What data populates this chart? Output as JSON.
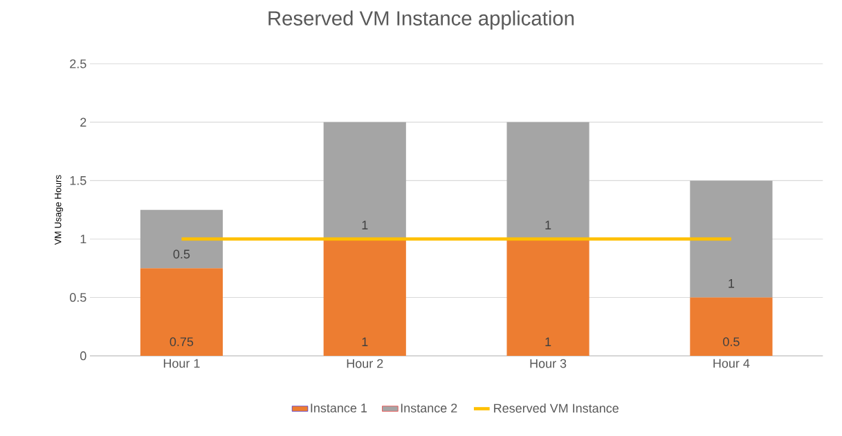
{
  "chart_data": {
    "type": "bar",
    "title": "Reserved VM Instance application",
    "ylabel": "VM Usage Hours",
    "categories": [
      "Hour 1",
      "Hour 2",
      "Hour 3",
      "Hour 4"
    ],
    "series": [
      {
        "name": "Instance 1",
        "color": "#ed7d31",
        "values": [
          0.75,
          1,
          1,
          0.5
        ],
        "value_labels": [
          "0.75",
          "1",
          "1",
          "0.5"
        ]
      },
      {
        "name": "Instance 2",
        "color": "#a5a5a5",
        "values": [
          0.5,
          1,
          1,
          1
        ],
        "value_labels": [
          "0.5",
          "1",
          "1",
          "1"
        ]
      },
      {
        "name": "Reserved VM Instance",
        "type": "line",
        "color": "#ffc000",
        "values": [
          1,
          1,
          1,
          1
        ],
        "marker": "none",
        "line_style": "solid"
      }
    ],
    "stacked": true,
    "ylim": [
      0,
      2.5
    ],
    "yticks": [
      0,
      0.5,
      1,
      1.5,
      2,
      2.5
    ],
    "grid": "y",
    "legend": "bottom"
  }
}
